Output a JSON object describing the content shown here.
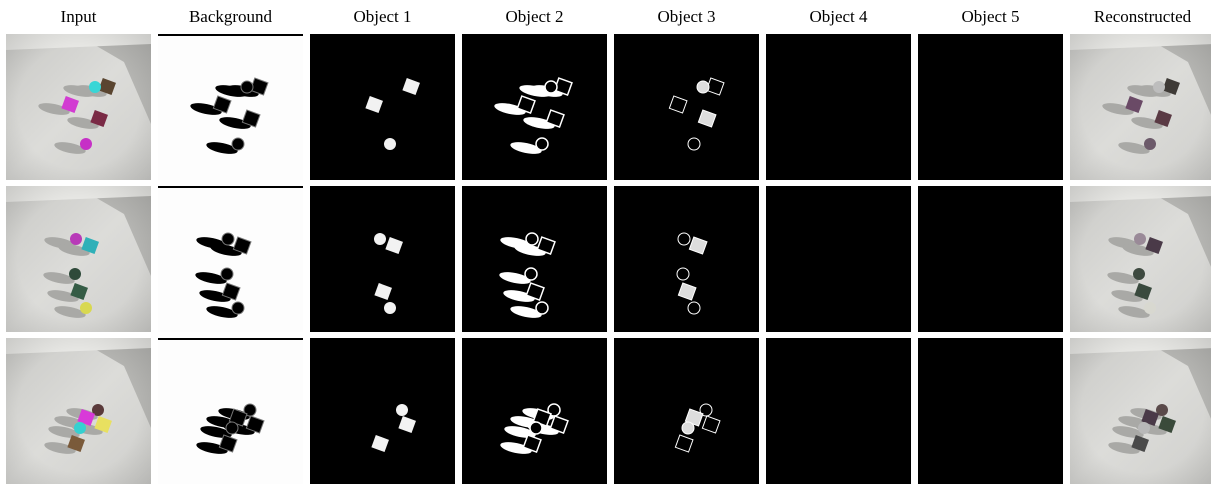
{
  "header": {
    "columns": [
      "Input",
      "Background",
      "Object 1",
      "Object 2",
      "Object 3",
      "Object 4",
      "Object 5",
      "Reconstructed"
    ]
  }
}
